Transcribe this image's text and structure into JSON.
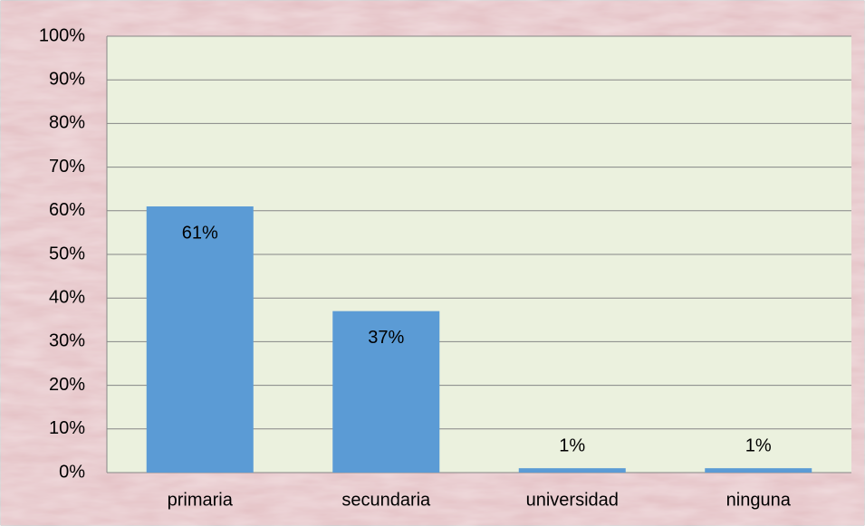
{
  "chart_data": {
    "type": "bar",
    "categories": [
      "primaria",
      "secundaria",
      "universidad",
      "ninguna"
    ],
    "values": [
      61,
      37,
      1,
      1
    ],
    "value_labels": [
      "61%",
      "37%",
      "1%",
      "1%"
    ],
    "color": "#5b9bd5",
    "ylim": [
      0,
      100
    ],
    "yticks": [
      {
        "value": 0,
        "label": "0%"
      },
      {
        "value": 10,
        "label": "10%"
      },
      {
        "value": 20,
        "label": "20%"
      },
      {
        "value": 30,
        "label": "30%"
      },
      {
        "value": 40,
        "label": "40%"
      },
      {
        "value": 50,
        "label": "50%"
      },
      {
        "value": 60,
        "label": "60%"
      },
      {
        "value": 70,
        "label": "70%"
      },
      {
        "value": 80,
        "label": "80%"
      },
      {
        "value": 90,
        "label": "90%"
      },
      {
        "value": 100,
        "label": "100%"
      }
    ],
    "grid": true
  }
}
